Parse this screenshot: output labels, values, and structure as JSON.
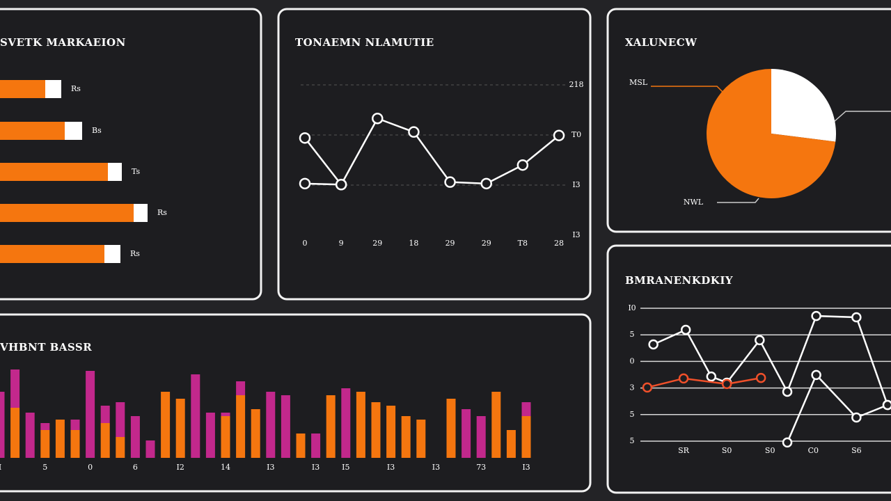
{
  "chart_data": [
    {
      "type": "hbar",
      "title": "SVETK MARKAEION",
      "categories": [
        "Rs",
        "Bs",
        "Ts",
        "Rs",
        "Rs"
      ],
      "series": [
        {
          "color": "#f5760f",
          "values": [
            65,
            93,
            155,
            192,
            150
          ]
        },
        {
          "color": "#ffffff",
          "values": [
            23,
            25,
            20,
            20,
            23
          ]
        }
      ],
      "xlim": [
        0,
        250
      ]
    },
    {
      "type": "line",
      "title": "TONAEMN NLAMUTIE",
      "categories": [
        "0",
        "9",
        "29",
        "18",
        "29",
        "29",
        "T8",
        "28"
      ],
      "series": [
        {
          "color": "#ffffff",
          "values": [
            1.94,
            1.01,
            2.33,
            2.06,
            1.06,
            1.03,
            1.4,
            1.99
          ]
        },
        {
          "color": "#ffffff",
          "values": [
            1.03,
            1.01,
            null,
            null,
            null,
            null,
            null,
            null
          ]
        }
      ],
      "ylim": [
        0,
        3
      ],
      "yticks": [
        {
          "value": 3,
          "label": "218"
        },
        {
          "value": 2,
          "label": "T0"
        },
        {
          "value": 1,
          "label": "I3"
        },
        {
          "value": 0,
          "label": "I3"
        }
      ],
      "grid": true
    },
    {
      "type": "pie",
      "title": "XALUNECW",
      "categories": [
        null,
        "MSL"
      ],
      "values": [
        27,
        73
      ],
      "colors": [
        "#ffffff",
        "#f5760f"
      ],
      "annotations": [
        "NWL"
      ]
    },
    {
      "type": "stacked_bar",
      "title": "VHBNT BASSR",
      "categories": [
        "I",
        null,
        null,
        "5",
        null,
        null,
        "0",
        null,
        null,
        "6",
        null,
        null,
        "I2",
        null,
        null,
        "14",
        null,
        null,
        "I3",
        null,
        null,
        "I3",
        null,
        "I5",
        null,
        null,
        "I3",
        null,
        null,
        "I3",
        null,
        null,
        "73",
        null,
        null,
        "I3"
      ],
      "series": [
        {
          "color": "#f5760f",
          "values": [
            0,
            72,
            0,
            40,
            55,
            40,
            0,
            50,
            30,
            0,
            0,
            95,
            85,
            0,
            0,
            60,
            90,
            70,
            0,
            0,
            35,
            0,
            90,
            0,
            95,
            80,
            75,
            60,
            55,
            0,
            85,
            0,
            0,
            95,
            40,
            60
          ]
        },
        {
          "color": "#c2288c",
          "values": [
            95,
            55,
            65,
            10,
            0,
            15,
            125,
            25,
            50,
            60,
            25,
            0,
            0,
            120,
            65,
            5,
            20,
            0,
            95,
            90,
            0,
            35,
            0,
            100,
            0,
            0,
            0,
            0,
            0,
            0,
            0,
            70,
            60,
            0,
            0,
            20
          ]
        }
      ],
      "ylim": [
        0,
        140
      ]
    },
    {
      "type": "xyline",
      "title": "BMRANENKDKIY",
      "series": [
        {
          "color": "#ffffff",
          "x": [
            0.3,
            1.05,
            1.64,
            2.0,
            2.76,
            3.4,
            4.07,
            5.0,
            5.72
          ],
          "values": [
            3.64,
            4.19,
            2.43,
            2.2,
            3.8,
            1.86,
            4.71,
            4.66,
            1.36
          ]
        },
        {
          "color": "#ffffff",
          "x": [
            3.4,
            4.07,
            5.0,
            5.72
          ],
          "values": [
            -0.05,
            2.49,
            0.89,
            1.36
          ]
        },
        {
          "color": "#f0502a",
          "x": [
            0.16,
            1.0,
            2.0,
            2.79
          ],
          "values": [
            2.02,
            2.36,
            2.15,
            2.38
          ]
        }
      ],
      "xlim": [
        0,
        5.8
      ],
      "xticks": [
        {
          "value": 1,
          "label": "SR"
        },
        {
          "value": 2,
          "label": "S0"
        },
        {
          "value": 3,
          "label": "S0"
        },
        {
          "value": 4,
          "label": "C0"
        },
        {
          "value": 5,
          "label": "S6"
        }
      ],
      "ylim": [
        -0.3,
        5.2
      ],
      "yticks": [
        {
          "value": 5,
          "label": "I0"
        },
        {
          "value": 4,
          "label": "5"
        },
        {
          "value": 3,
          "label": "0"
        },
        {
          "value": 2,
          "label": "3"
        },
        {
          "value": 1,
          "label": "5"
        },
        {
          "value": 0,
          "label": "5"
        }
      ],
      "grid": true
    }
  ]
}
